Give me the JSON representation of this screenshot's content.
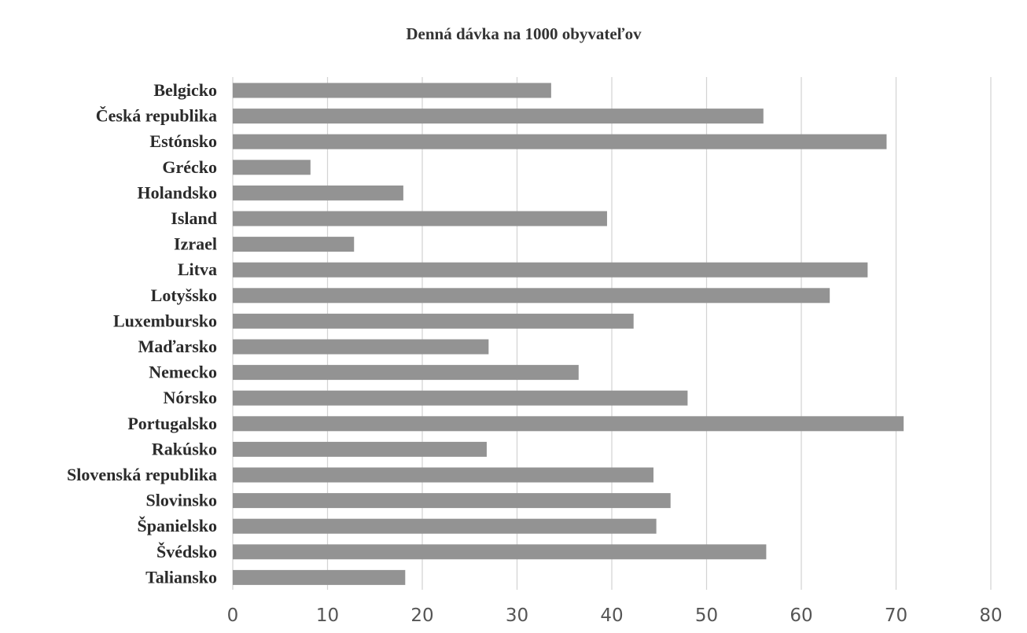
{
  "chart_data": {
    "type": "bar",
    "orientation": "horizontal",
    "title": "Denná dávka na 1000 obyvateľov",
    "xlabel": "",
    "ylabel": "",
    "xlim": [
      0,
      80
    ],
    "ticks": [
      "0",
      "10",
      "20",
      "30",
      "40",
      "50",
      "60",
      "70",
      "80"
    ],
    "grid": true,
    "legend": "none",
    "bar_color": "#939393",
    "categories": [
      "Belgicko",
      "Česká republika",
      "Estónsko",
      "Grécko",
      "Holandsko",
      "Island",
      "Izrael",
      "Litva",
      "Lotyšsko",
      "Luxembursko",
      "Maďarsko",
      "Nemecko",
      "Nórsko",
      "Portugalsko",
      "Rakúsko",
      "Slovenská republika",
      "Slovinsko",
      "Španielsko",
      "Švédsko",
      "Taliansko"
    ],
    "values": [
      33.6,
      56,
      69,
      8.2,
      18,
      39.5,
      12.8,
      67,
      63,
      42.3,
      27,
      36.5,
      48,
      70.8,
      26.8,
      44.4,
      46.2,
      44.7,
      56.3,
      18.2
    ]
  }
}
